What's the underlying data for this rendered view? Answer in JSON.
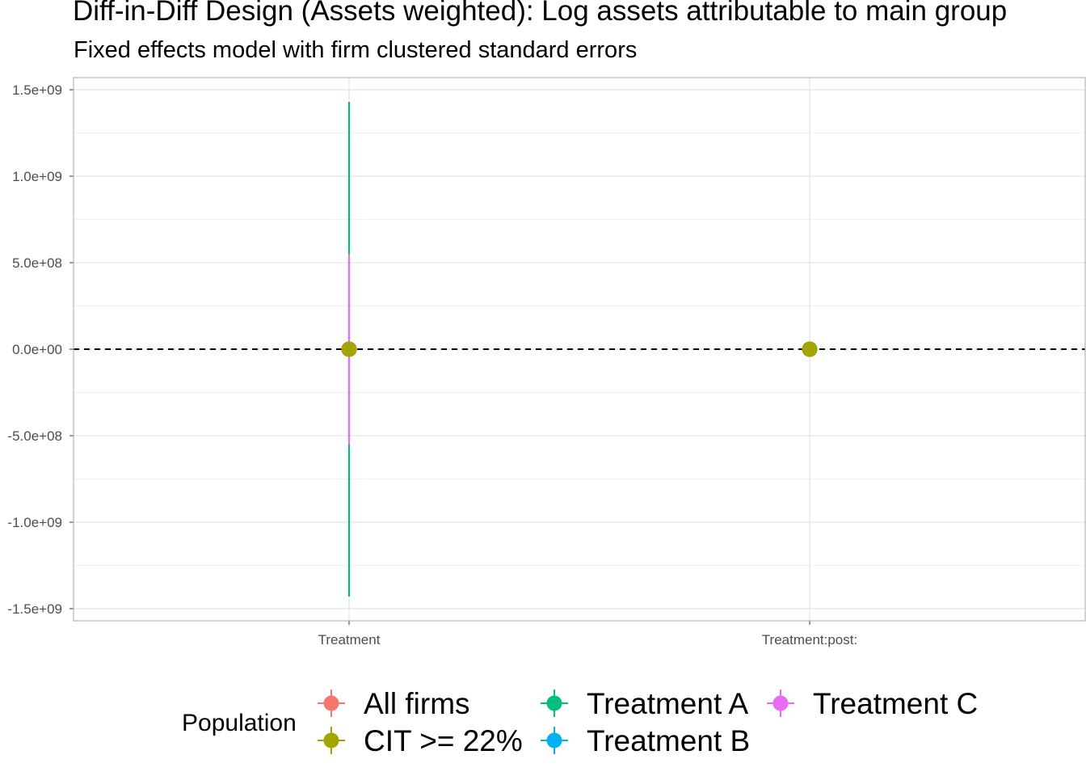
{
  "chart_data": {
    "type": "scatter",
    "title": "Diff-in-Diff Design (Assets weighted): Log assets attributable to main group",
    "subtitle": "Fixed effects model with firm clustered standard errors",
    "xlabel": "",
    "ylabel": "",
    "categories": [
      "Treatment",
      "Treatment:post:"
    ],
    "ylim": [
      -1550000000.0,
      1580000000.0
    ],
    "yticks": [
      {
        "value": 1500000000.0,
        "label": "1.5e+09"
      },
      {
        "value": 1000000000.0,
        "label": "1.0e+09"
      },
      {
        "value": 500000000.0,
        "label": "5.0e+08"
      },
      {
        "value": 0,
        "label": "0.0e+00"
      },
      {
        "value": -500000000.0,
        "label": "-5.0e+08"
      },
      {
        "value": -1000000000.0,
        "label": "-1.0e+09"
      },
      {
        "value": -1500000000.0,
        "label": "-1.5e+09"
      }
    ],
    "reference_line": {
      "y": 0,
      "style": "dashed"
    },
    "grid": true,
    "series": [
      {
        "name": "All firms",
        "color": "#F8766D",
        "points": [
          {
            "x": "Treatment",
            "y": 0,
            "lower": 0,
            "upper": 0
          },
          {
            "x": "Treatment:post:",
            "y": 0,
            "lower": 0,
            "upper": 0
          }
        ]
      },
      {
        "name": "CIT >= 22%",
        "color": "#A3A500",
        "points": [
          {
            "x": "Treatment",
            "y": 0,
            "lower": 0,
            "upper": 0
          },
          {
            "x": "Treatment:post:",
            "y": 0,
            "lower": 0,
            "upper": 0
          }
        ]
      },
      {
        "name": "Treatment A",
        "color": "#00BF7D",
        "points": [
          {
            "x": "Treatment",
            "y": 0,
            "lower": -1430000000.0,
            "upper": 1430000000.0
          },
          {
            "x": "Treatment:post:",
            "y": 0,
            "lower": 0,
            "upper": 0
          }
        ]
      },
      {
        "name": "Treatment B",
        "color": "#00B0F6",
        "points": [
          {
            "x": "Treatment",
            "y": 0,
            "lower": 0,
            "upper": 0
          },
          {
            "x": "Treatment:post:",
            "y": 0,
            "lower": 0,
            "upper": 0
          }
        ]
      },
      {
        "name": "Treatment C",
        "color": "#E76BF3",
        "points": [
          {
            "x": "Treatment",
            "y": 0,
            "lower": -550000000.0,
            "upper": 550000000.0
          },
          {
            "x": "Treatment:post:",
            "y": 0,
            "lower": 0,
            "upper": 0
          }
        ]
      }
    ],
    "legend": {
      "title": "Population",
      "placement": "bottom",
      "entries": [
        "All firms",
        "CIT >= 22%",
        "Treatment A",
        "Treatment B",
        "Treatment C"
      ]
    }
  }
}
